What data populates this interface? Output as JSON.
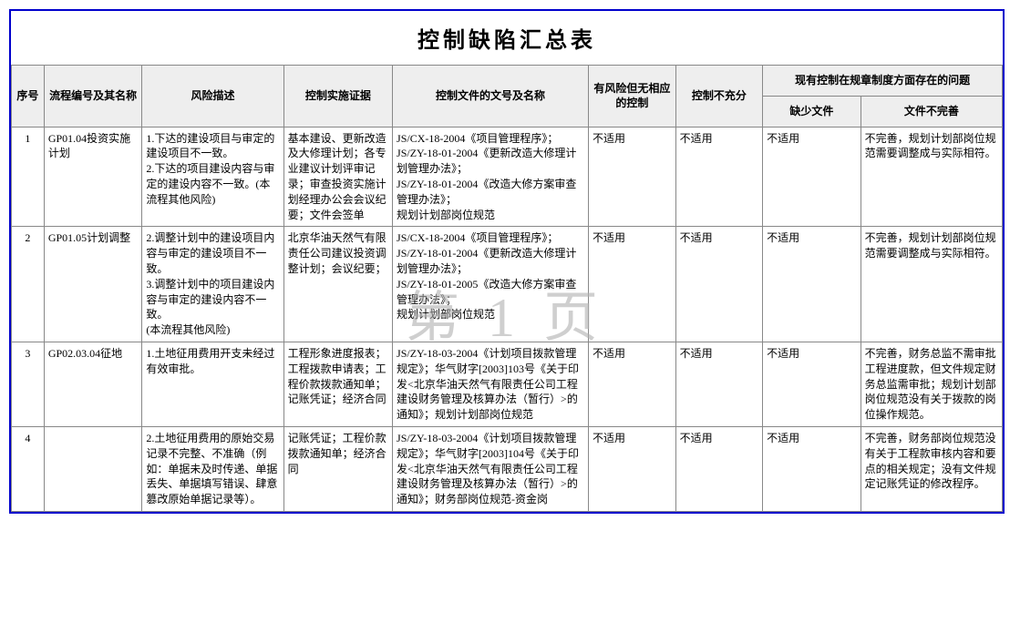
{
  "title": "控制缺陷汇总表",
  "watermark": "第 1 页",
  "headers": {
    "seq": "序号",
    "proc": "流程编号及其名称",
    "risk": "风险描述",
    "evidence": "控制实施证据",
    "docnum": "控制文件的文号及名称",
    "norisk": "有风险但无相应的控制",
    "insuff": "控制不充分",
    "problems": "现有控制在规章制度方面存在的问题",
    "missing": "缺少文件",
    "incomplete": "文件不完善"
  },
  "rows": [
    {
      "seq": "1",
      "proc": "GP01.04投资实施计划",
      "risk": "1.下达的建设项目与审定的建设项目不一致。\n2.下达的项目建设内容与审定的建设内容不一致。(本流程其他风险)",
      "evidence": "基本建设、更新改造及大修理计划；各专业建议计划评审记录；审查投资实施计划经理办公会会议纪要；文件会签单",
      "docnum": "JS/CX-18-2004《项目管理程序》；\nJS/ZY-18-01-2004《更新改造大修理计划管理办法》；\nJS/ZY-18-01-2004《改造大修方案审查管理办法》；\n规划计划部岗位规范",
      "norisk": "不适用",
      "insuff": "不适用",
      "missing": "不适用",
      "incomplete": "不完善，规划计划部岗位规范需要调整成与实际相符。"
    },
    {
      "seq": "2",
      "proc": "GP01.05计划调整",
      "risk": "2.调整计划中的建设项目内容与审定的建设项目不一致。\n3.调整计划中的项目建设内容与审定的建设内容不一致。\n(本流程其他风险)",
      "evidence": "北京华油天然气有限责任公司建议投资调整计划；会议纪要；",
      "docnum": "JS/CX-18-2004《项目管理程序》；\nJS/ZY-18-01-2004《更新改造大修理计划管理办法》；\nJS/ZY-18-01-2005《改造大修方案审查管理办法》；\n规划计划部岗位规范",
      "norisk": "不适用",
      "insuff": "不适用",
      "missing": "不适用",
      "incomplete": "不完善，规划计划部岗位规范需要调整成与实际相符。"
    },
    {
      "seq": "3",
      "proc": "GP02.03.04征地",
      "risk": "1.土地征用费用开支未经过有效审批。",
      "evidence": "工程形象进度报表；工程拨款申请表；工程价款拨款通知单；记账凭证；经济合同",
      "docnum": "JS/ZY-18-03-2004《计划项目拨款管理规定》；华气财字[2003]103号《关于印发<北京华油天然气有限责任公司工程建设财务管理及核算办法（暂行）>的通知》；规划计划部岗位规范",
      "norisk": "不适用",
      "insuff": "不适用",
      "missing": "不适用",
      "incomplete": "不完善，财务总监不需审批工程进度款，但文件规定财务总监需审批；规划计划部岗位规范没有关于拨款的岗位操作规范。"
    },
    {
      "seq": "4",
      "proc": "",
      "risk": "2.土地征用费用的原始交易记录不完整、不准确（例如：单据未及时传递、单据丢失、单据填写错误、肆意篡改原始单据记录等）。",
      "evidence": "记账凭证；工程价款拨款通知单；经济合同",
      "docnum": "JS/ZY-18-03-2004《计划项目拨款管理规定》；华气财字[2003]104号《关于印发<北京华油天然气有限责任公司工程建设财务管理及核算办法（暂行）>的通知》；财务部岗位规范-资金岗",
      "norisk": "不适用",
      "insuff": "不适用",
      "missing": "不适用",
      "incomplete": "不完善，财务部岗位规范没有关于工程款审核内容和要点的相关规定；没有文件规定记账凭证的修改程序。"
    }
  ]
}
